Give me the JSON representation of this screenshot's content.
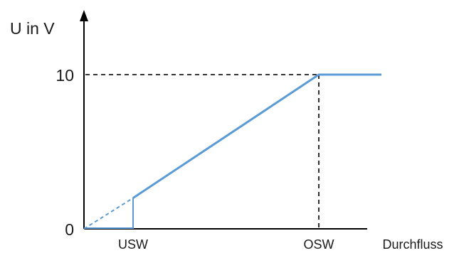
{
  "chart_data": {
    "type": "line",
    "title": "",
    "ylabel": "U in V",
    "xlabel": "Durchfluss",
    "y_ticks": [
      "10",
      "0"
    ],
    "x_ticks": [
      "USW",
      "OSW"
    ],
    "ylim": [
      0,
      10
    ],
    "series": [
      {
        "style": "dashed",
        "points": [
          {
            "x": "0",
            "y": 0
          },
          {
            "x": "USW",
            "y": 2
          }
        ]
      },
      {
        "style": "solid",
        "points": [
          {
            "x": "USW",
            "y": 2
          },
          {
            "x": "OSW",
            "y": 10
          },
          {
            "x": "Durchfluss",
            "y": 10
          }
        ]
      }
    ],
    "reference_lines": [
      {
        "style": "dashed",
        "from": "10",
        "to": "OSW"
      }
    ],
    "colors": {
      "curve": "#5b9bd5",
      "axis": "#000000"
    }
  }
}
